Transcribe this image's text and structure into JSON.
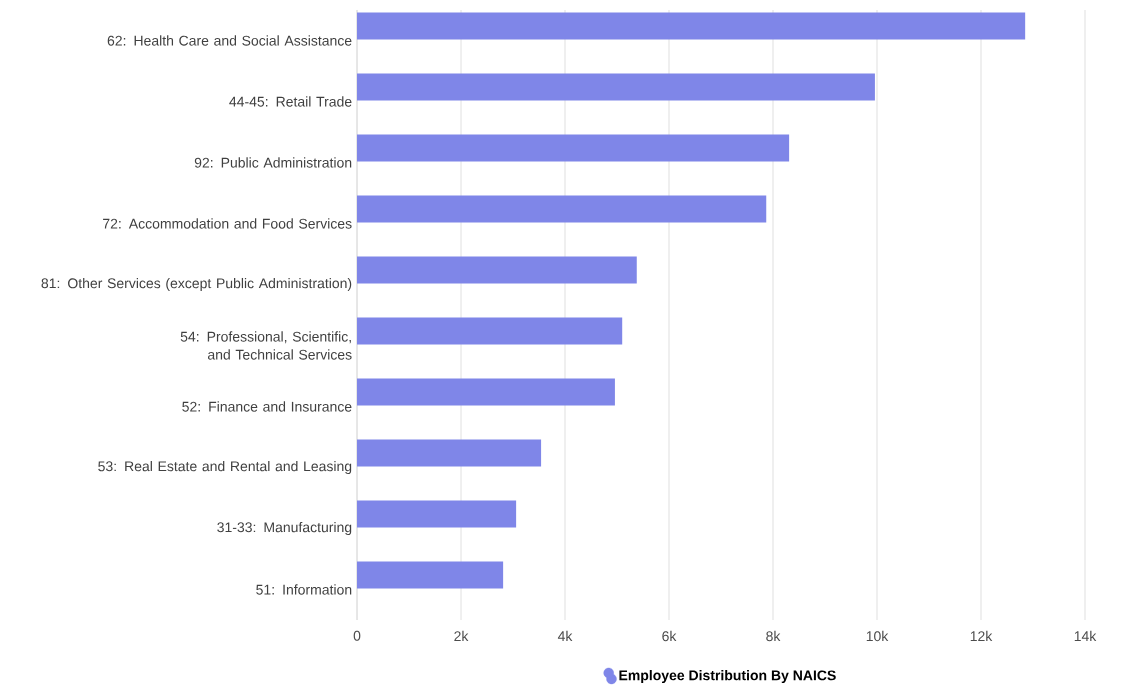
{
  "chart_data": {
    "type": "bar",
    "orientation": "horizontal",
    "categories": [
      "62: Health Care and Social Assistance",
      "44-45: Retail Trade",
      "92: Public Administration",
      "72: Accommodation and Food Services",
      "81: Other Services (except Public Administration)",
      "54: Professional, Scientific, and Technical Services",
      "52: Finance and Insurance",
      "53: Real Estate and Rental and Leasing",
      "31-33: Manufacturing",
      "51: Information"
    ],
    "series": [
      {
        "name": "Employee Distribution By NAICS",
        "color": "#7f86e8",
        "values": [
          12850,
          9960,
          8310,
          7870,
          5380,
          5100,
          4960,
          3540,
          3060,
          2810
        ]
      }
    ],
    "xlim": [
      0,
      14000
    ],
    "xticks": [
      0,
      {
        "value": 2000,
        "label": "2k"
      },
      {
        "value": 4000,
        "label": "4k"
      },
      {
        "value": 6000,
        "label": "6k"
      },
      {
        "value": 8000,
        "label": "8k"
      },
      {
        "value": 10000,
        "label": "10k"
      },
      {
        "value": 12000,
        "label": "12k"
      },
      {
        "value": 14000,
        "label": "14k"
      }
    ],
    "grid": "x",
    "legend": "bottom"
  }
}
